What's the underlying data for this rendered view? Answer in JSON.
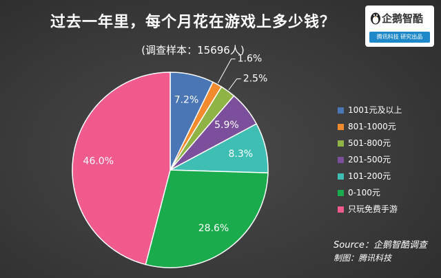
{
  "title": "过去一年里，每个月花在游戏上多少钱？",
  "subtitle": "(调查样本：15696人)",
  "logo": {
    "name": "企鹅智酷",
    "tagline": "腾讯科技  研究出品",
    "icon": "penguin-icon"
  },
  "chart_data": {
    "type": "pie",
    "title": "过去一年里，每个月花在游戏上多少钱？",
    "subtitle": "(调查样本：15696人)",
    "start_angle": "12 o'clock, clockwise",
    "slices": [
      {
        "label": "1001元及以上",
        "value": 7.2,
        "display": "7.2%",
        "color": "#4a76b5"
      },
      {
        "label": "801-1000元",
        "value": 1.6,
        "display": "1.6%",
        "color": "#f28a2e"
      },
      {
        "label": "501-800元",
        "value": 2.5,
        "display": "2.5%",
        "color": "#8fb445"
      },
      {
        "label": "201-500元",
        "value": 5.9,
        "display": "5.9%",
        "color": "#7b4f9c"
      },
      {
        "label": "101-200元",
        "value": 8.3,
        "display": "8.3%",
        "color": "#3fbfb4"
      },
      {
        "label": "0-100元",
        "value": 28.6,
        "display": "28.6%",
        "color": "#1aab4c"
      },
      {
        "label": "只玩免费手游",
        "value": 46.0,
        "display": "46.0%",
        "color": "#f05a8c"
      }
    ],
    "legend_position": "right"
  },
  "source": "Source：企鹅智酷调查",
  "maker": "制图：腾讯科技"
}
